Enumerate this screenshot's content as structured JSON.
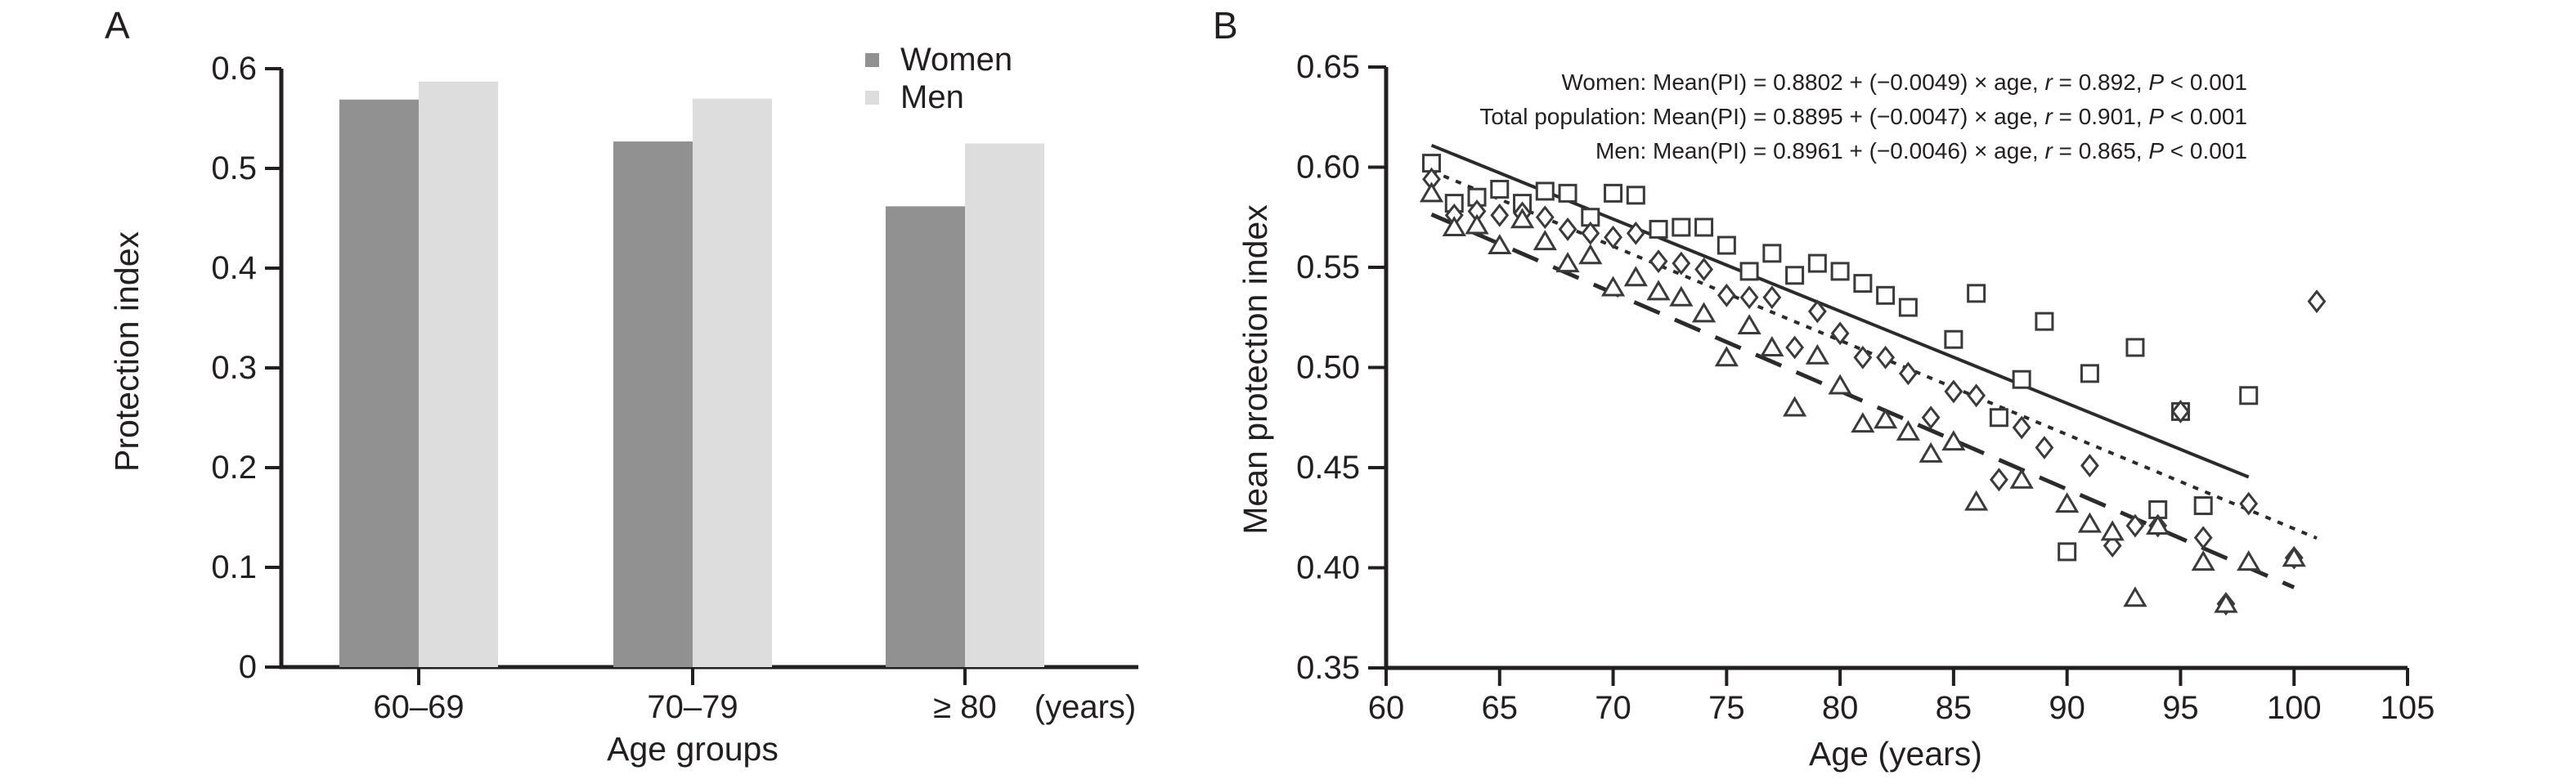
{
  "figure": {
    "panel_a_label": "A",
    "panel_b_label": "B"
  },
  "panel_b": {
    "equations": [
      {
        "prefix": "Women: Mean(PI) = 0.8802 + (−0.0049) × age, ",
        "r_sym": "r",
        "r_val": " = 0.892, ",
        "p_sym": "P",
        "p_val": " < 0.001"
      },
      {
        "prefix": "Total population: Mean(PI) = 0.8895 + (−0.0047) × age, ",
        "r_sym": "r",
        "r_val": " = 0.901, ",
        "p_sym": "P",
        "p_val": " < 0.001"
      },
      {
        "prefix": "Men: Mean(PI) = 0.8961 + (−0.0046) × age, ",
        "r_sym": "r",
        "r_val": " = 0.865, ",
        "p_sym": "P",
        "p_val": " < 0.001"
      }
    ]
  },
  "chart_data": [
    {
      "type": "bar",
      "title": "",
      "xlabel": "Age groups",
      "ylabel": "Protection index",
      "x_suffix": "(years)",
      "categories": [
        "60–69",
        "70–79",
        "≥ 80"
      ],
      "series": [
        {
          "name": "Women",
          "color": "#919191",
          "values": [
            0.569,
            0.527,
            0.462
          ]
        },
        {
          "name": "Men",
          "color": "#dddddd",
          "values": [
            0.587,
            0.57,
            0.525
          ]
        }
      ],
      "ylim": [
        0,
        0.6
      ],
      "ytick_step": 0.1,
      "ytick_labels": [
        "0",
        "0.1",
        "0.2",
        "0.3",
        "0.4",
        "0.5",
        "0.6"
      ],
      "grid": false,
      "legend_position": "top-right"
    },
    {
      "type": "scatter",
      "title": "",
      "xlabel": "Age (years)",
      "ylabel": "Mean protection index",
      "xlim": [
        60,
        105
      ],
      "ylim": [
        0.35,
        0.65
      ],
      "xtick_labels": [
        "60",
        "65",
        "70",
        "75",
        "80",
        "85",
        "90",
        "95",
        "100",
        "105"
      ],
      "ytick_labels": [
        "0.35",
        "0.40",
        "0.45",
        "0.50",
        "0.55",
        "0.60",
        "0.65"
      ],
      "grid": false,
      "series": [
        {
          "name": "Men",
          "marker": "square",
          "line_style": "solid",
          "regression": {
            "intercept": 0.8961,
            "slope": -0.0046,
            "x_start": 62,
            "x_end": 98,
            "r": 0.865,
            "p": "P < 0.001"
          },
          "points": [
            [
              62,
              0.602
            ],
            [
              63,
              0.582
            ],
            [
              64,
              0.585
            ],
            [
              65,
              0.589
            ],
            [
              66,
              0.582
            ],
            [
              67,
              0.588
            ],
            [
              68,
              0.587
            ],
            [
              69,
              0.575
            ],
            [
              70,
              0.587
            ],
            [
              71,
              0.586
            ],
            [
              72,
              0.569
            ],
            [
              73,
              0.57
            ],
            [
              74,
              0.57
            ],
            [
              75,
              0.561
            ],
            [
              76,
              0.548
            ],
            [
              77,
              0.557
            ],
            [
              78,
              0.546
            ],
            [
              79,
              0.552
            ],
            [
              80,
              0.548
            ],
            [
              81,
              0.542
            ],
            [
              82,
              0.536
            ],
            [
              83,
              0.53
            ],
            [
              85,
              0.514
            ],
            [
              86,
              0.537
            ],
            [
              87,
              0.475
            ],
            [
              88,
              0.494
            ],
            [
              89,
              0.523
            ],
            [
              90,
              0.408
            ],
            [
              91,
              0.497
            ],
            [
              93,
              0.51
            ],
            [
              94,
              0.429
            ],
            [
              95,
              0.478
            ],
            [
              96,
              0.431
            ],
            [
              98,
              0.486
            ]
          ]
        },
        {
          "name": "Total population",
          "marker": "diamond",
          "line_style": "dotted",
          "regression": {
            "intercept": 0.8895,
            "slope": -0.0047,
            "x_start": 62,
            "x_end": 101,
            "r": 0.901,
            "p": "P < 0.001"
          },
          "points": [
            [
              62,
              0.594
            ],
            [
              63,
              0.576
            ],
            [
              64,
              0.578
            ],
            [
              65,
              0.576
            ],
            [
              66,
              0.577
            ],
            [
              67,
              0.575
            ],
            [
              68,
              0.569
            ],
            [
              69,
              0.567
            ],
            [
              70,
              0.565
            ],
            [
              71,
              0.567
            ],
            [
              72,
              0.553
            ],
            [
              73,
              0.552
            ],
            [
              74,
              0.549
            ],
            [
              75,
              0.536
            ],
            [
              76,
              0.535
            ],
            [
              77,
              0.535
            ],
            [
              78,
              0.51
            ],
            [
              79,
              0.528
            ],
            [
              80,
              0.517
            ],
            [
              81,
              0.505
            ],
            [
              82,
              0.505
            ],
            [
              83,
              0.497
            ],
            [
              84,
              0.475
            ],
            [
              85,
              0.488
            ],
            [
              86,
              0.486
            ],
            [
              87,
              0.444
            ],
            [
              88,
              0.47
            ],
            [
              89,
              0.46
            ],
            [
              91,
              0.451
            ],
            [
              92,
              0.411
            ],
            [
              93,
              0.421
            ],
            [
              94,
              0.421
            ],
            [
              95,
              0.478
            ],
            [
              96,
              0.415
            ],
            [
              97,
              0.382
            ],
            [
              98,
              0.432
            ],
            [
              100,
              0.405
            ],
            [
              101,
              0.533
            ]
          ]
        },
        {
          "name": "Women",
          "marker": "triangle",
          "line_style": "long-dash",
          "regression": {
            "intercept": 0.8802,
            "slope": -0.0049,
            "x_start": 62,
            "x_end": 100,
            "r": 0.892,
            "p": "P < 0.001"
          },
          "points": [
            [
              62,
              0.587
            ],
            [
              63,
              0.57
            ],
            [
              64,
              0.571
            ],
            [
              65,
              0.561
            ],
            [
              66,
              0.574
            ],
            [
              67,
              0.563
            ],
            [
              68,
              0.552
            ],
            [
              69,
              0.556
            ],
            [
              70,
              0.54
            ],
            [
              71,
              0.545
            ],
            [
              72,
              0.538
            ],
            [
              73,
              0.535
            ],
            [
              74,
              0.527
            ],
            [
              75,
              0.505
            ],
            [
              76,
              0.521
            ],
            [
              77,
              0.51
            ],
            [
              78,
              0.48
            ],
            [
              79,
              0.506
            ],
            [
              80,
              0.491
            ],
            [
              81,
              0.472
            ],
            [
              82,
              0.474
            ],
            [
              83,
              0.468
            ],
            [
              84,
              0.457
            ],
            [
              85,
              0.463
            ],
            [
              86,
              0.433
            ],
            [
              88,
              0.444
            ],
            [
              90,
              0.432
            ],
            [
              91,
              0.422
            ],
            [
              92,
              0.418
            ],
            [
              93,
              0.385
            ],
            [
              94,
              0.421
            ],
            [
              96,
              0.403
            ],
            [
              97,
              0.382
            ],
            [
              98,
              0.403
            ],
            [
              100,
              0.405
            ]
          ]
        }
      ]
    }
  ]
}
